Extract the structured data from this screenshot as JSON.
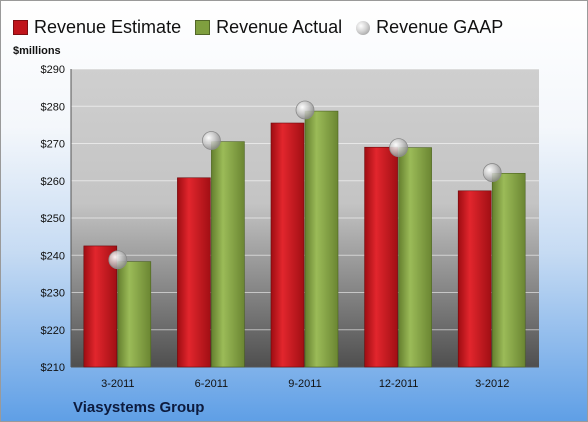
{
  "legend": {
    "estimate": "Revenue Estimate",
    "actual": "Revenue Actual",
    "gaap": "Revenue GAAP"
  },
  "ylabel": "$millions",
  "company": "Viasystems Group",
  "colors": {
    "estimate": "#c0141b",
    "actual": "#7f9f3f",
    "gaap": "#b9b9b9",
    "plot_top": "#c9c9c9",
    "plot_bottom": "#4f4f4f"
  },
  "chart_data": {
    "type": "bar",
    "categories": [
      "3-2011",
      "6-2011",
      "9-2011",
      "12-2011",
      "3-2012"
    ],
    "series": [
      {
        "name": "Revenue Estimate",
        "values": [
          242.5,
          260.8,
          275.5,
          269.0,
          257.3
        ]
      },
      {
        "name": "Revenue Actual",
        "values": [
          238.3,
          270.5,
          278.7,
          268.9,
          262.0
        ]
      },
      {
        "name": "Revenue GAAP",
        "values": [
          238.8,
          270.8,
          279.0,
          268.9,
          262.2
        ]
      }
    ],
    "ylim": [
      210,
      290
    ],
    "yticks": [
      "$210",
      "$220",
      "$230",
      "$240",
      "$250",
      "$260",
      "$270",
      "$280",
      "$290"
    ],
    "grid": true,
    "legend_position": "top"
  }
}
